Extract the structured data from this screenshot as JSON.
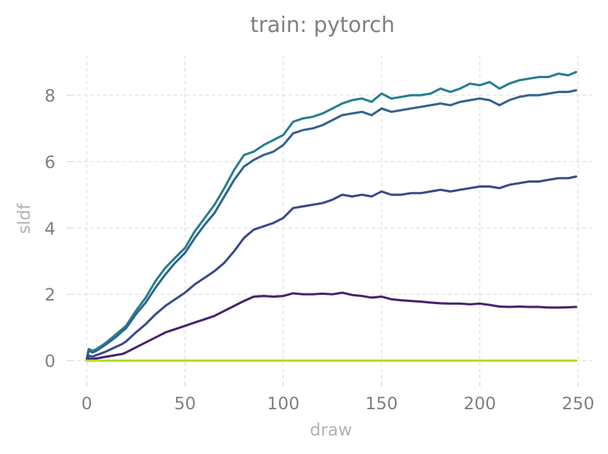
{
  "chart_data": {
    "type": "line",
    "title": "train: pytorch",
    "xlabel": "draw",
    "ylabel": "sldf",
    "xlim": [
      -8,
      258
    ],
    "ylim": [
      -0.65,
      9.2
    ],
    "xticks": [
      0,
      50,
      100,
      150,
      200,
      250
    ],
    "yticks": [
      0,
      2,
      4,
      6,
      8
    ],
    "grid": true,
    "legend": "none",
    "series": [
      {
        "color": "#277f8e",
        "x": [
          0,
          1,
          3,
          5,
          10,
          15,
          18,
          20,
          25,
          30,
          35,
          40,
          45,
          50,
          55,
          60,
          65,
          70,
          75,
          80,
          85,
          90,
          95,
          100,
          105,
          110,
          115,
          120,
          125,
          130,
          135,
          140,
          145,
          150,
          155,
          160,
          165,
          170,
          175,
          180,
          185,
          190,
          195,
          200,
          205,
          210,
          215,
          220,
          225,
          230,
          235,
          240,
          245,
          249
        ],
        "y": [
          0.05,
          0.35,
          0.3,
          0.35,
          0.55,
          0.8,
          0.95,
          1.05,
          1.5,
          1.9,
          2.4,
          2.8,
          3.1,
          3.4,
          3.9,
          4.3,
          4.7,
          5.2,
          5.75,
          6.2,
          6.3,
          6.5,
          6.65,
          6.8,
          7.2,
          7.3,
          7.35,
          7.45,
          7.6,
          7.75,
          7.85,
          7.9,
          7.8,
          8.05,
          7.9,
          7.95,
          8.0,
          8.0,
          8.05,
          8.2,
          8.1,
          8.2,
          8.35,
          8.3,
          8.4,
          8.2,
          8.35,
          8.45,
          8.5,
          8.55,
          8.55,
          8.65,
          8.6,
          8.7
        ]
      },
      {
        "color": "#33638d",
        "x": [
          0,
          1,
          3,
          5,
          10,
          15,
          18,
          20,
          25,
          30,
          35,
          40,
          45,
          50,
          55,
          60,
          65,
          70,
          75,
          80,
          85,
          90,
          95,
          100,
          105,
          110,
          115,
          120,
          125,
          130,
          135,
          140,
          145,
          150,
          155,
          160,
          165,
          170,
          175,
          180,
          185,
          190,
          195,
          200,
          205,
          210,
          215,
          220,
          225,
          230,
          235,
          240,
          245,
          249
        ],
        "y": [
          0.05,
          0.3,
          0.25,
          0.3,
          0.5,
          0.72,
          0.88,
          0.98,
          1.4,
          1.75,
          2.2,
          2.6,
          2.95,
          3.25,
          3.7,
          4.1,
          4.45,
          4.95,
          5.45,
          5.85,
          6.05,
          6.2,
          6.3,
          6.5,
          6.85,
          6.95,
          7.0,
          7.1,
          7.25,
          7.4,
          7.45,
          7.5,
          7.4,
          7.6,
          7.5,
          7.55,
          7.6,
          7.65,
          7.7,
          7.75,
          7.7,
          7.8,
          7.85,
          7.9,
          7.85,
          7.7,
          7.85,
          7.95,
          8.0,
          8.0,
          8.05,
          8.1,
          8.1,
          8.15
        ]
      },
      {
        "color": "#3b4a8a",
        "x": [
          0,
          1,
          3,
          5,
          10,
          15,
          18,
          20,
          25,
          30,
          35,
          40,
          45,
          50,
          55,
          60,
          65,
          70,
          75,
          80,
          85,
          90,
          95,
          100,
          105,
          110,
          115,
          120,
          125,
          130,
          135,
          140,
          145,
          150,
          155,
          160,
          165,
          170,
          175,
          180,
          185,
          190,
          195,
          200,
          205,
          210,
          215,
          220,
          225,
          230,
          235,
          240,
          245,
          249
        ],
        "y": [
          0.0,
          0.15,
          0.12,
          0.17,
          0.28,
          0.42,
          0.5,
          0.58,
          0.85,
          1.1,
          1.4,
          1.65,
          1.85,
          2.05,
          2.3,
          2.5,
          2.7,
          2.95,
          3.3,
          3.7,
          3.95,
          4.05,
          4.15,
          4.3,
          4.6,
          4.65,
          4.7,
          4.75,
          4.85,
          5.0,
          4.95,
          5.0,
          4.95,
          5.1,
          5.0,
          5.0,
          5.05,
          5.05,
          5.1,
          5.15,
          5.1,
          5.15,
          5.2,
          5.25,
          5.25,
          5.2,
          5.3,
          5.35,
          5.4,
          5.4,
          5.45,
          5.5,
          5.5,
          5.55
        ]
      },
      {
        "color": "#45246e",
        "x": [
          0,
          1,
          3,
          5,
          10,
          15,
          18,
          20,
          25,
          30,
          35,
          40,
          45,
          50,
          55,
          60,
          65,
          70,
          75,
          80,
          85,
          90,
          95,
          100,
          105,
          110,
          115,
          120,
          125,
          130,
          135,
          140,
          145,
          150,
          155,
          160,
          165,
          170,
          175,
          180,
          185,
          190,
          195,
          200,
          205,
          210,
          215,
          220,
          225,
          230,
          235,
          240,
          245,
          249
        ],
        "y": [
          0.0,
          0.06,
          0.05,
          0.07,
          0.12,
          0.17,
          0.2,
          0.25,
          0.4,
          0.55,
          0.7,
          0.85,
          0.95,
          1.05,
          1.15,
          1.25,
          1.35,
          1.5,
          1.65,
          1.8,
          1.93,
          1.95,
          1.93,
          1.95,
          2.03,
          2.0,
          2.0,
          2.02,
          2.0,
          2.05,
          1.98,
          1.95,
          1.9,
          1.93,
          1.85,
          1.82,
          1.8,
          1.78,
          1.75,
          1.73,
          1.72,
          1.72,
          1.7,
          1.72,
          1.68,
          1.63,
          1.62,
          1.63,
          1.62,
          1.62,
          1.6,
          1.6,
          1.61,
          1.62
        ]
      },
      {
        "color": "#b5de2b",
        "x": [
          0,
          249
        ],
        "y": [
          0.0,
          0.0
        ]
      }
    ]
  }
}
